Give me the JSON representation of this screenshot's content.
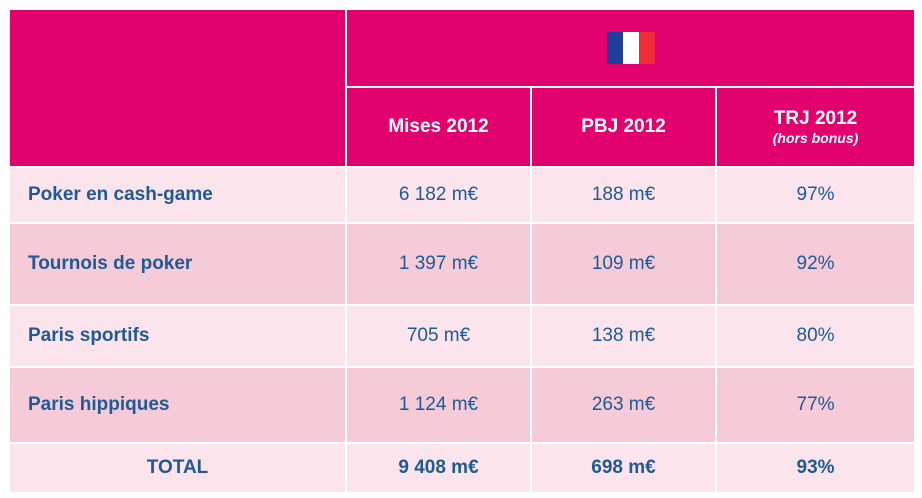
{
  "table": {
    "columns": [
      {
        "title": "Mises 2012"
      },
      {
        "title": "PBJ 2012"
      },
      {
        "title": "TRJ 2012",
        "subtitle": "(hors bonus)"
      }
    ],
    "rows": [
      [
        "Poker en cash-game",
        "6 182 m€",
        "188 m€",
        "97%"
      ],
      [
        "Tournois de poker",
        "1 397 m€",
        "109 m€",
        "92%"
      ],
      [
        "Paris sportifs",
        "705 m€",
        "138 m€",
        "80%"
      ],
      [
        "Paris hippiques",
        "1 124 m€",
        "263 m€",
        "77%"
      ]
    ],
    "total": [
      "TOTAL",
      "9 408 m€",
      "698 m€",
      "93%"
    ]
  }
}
